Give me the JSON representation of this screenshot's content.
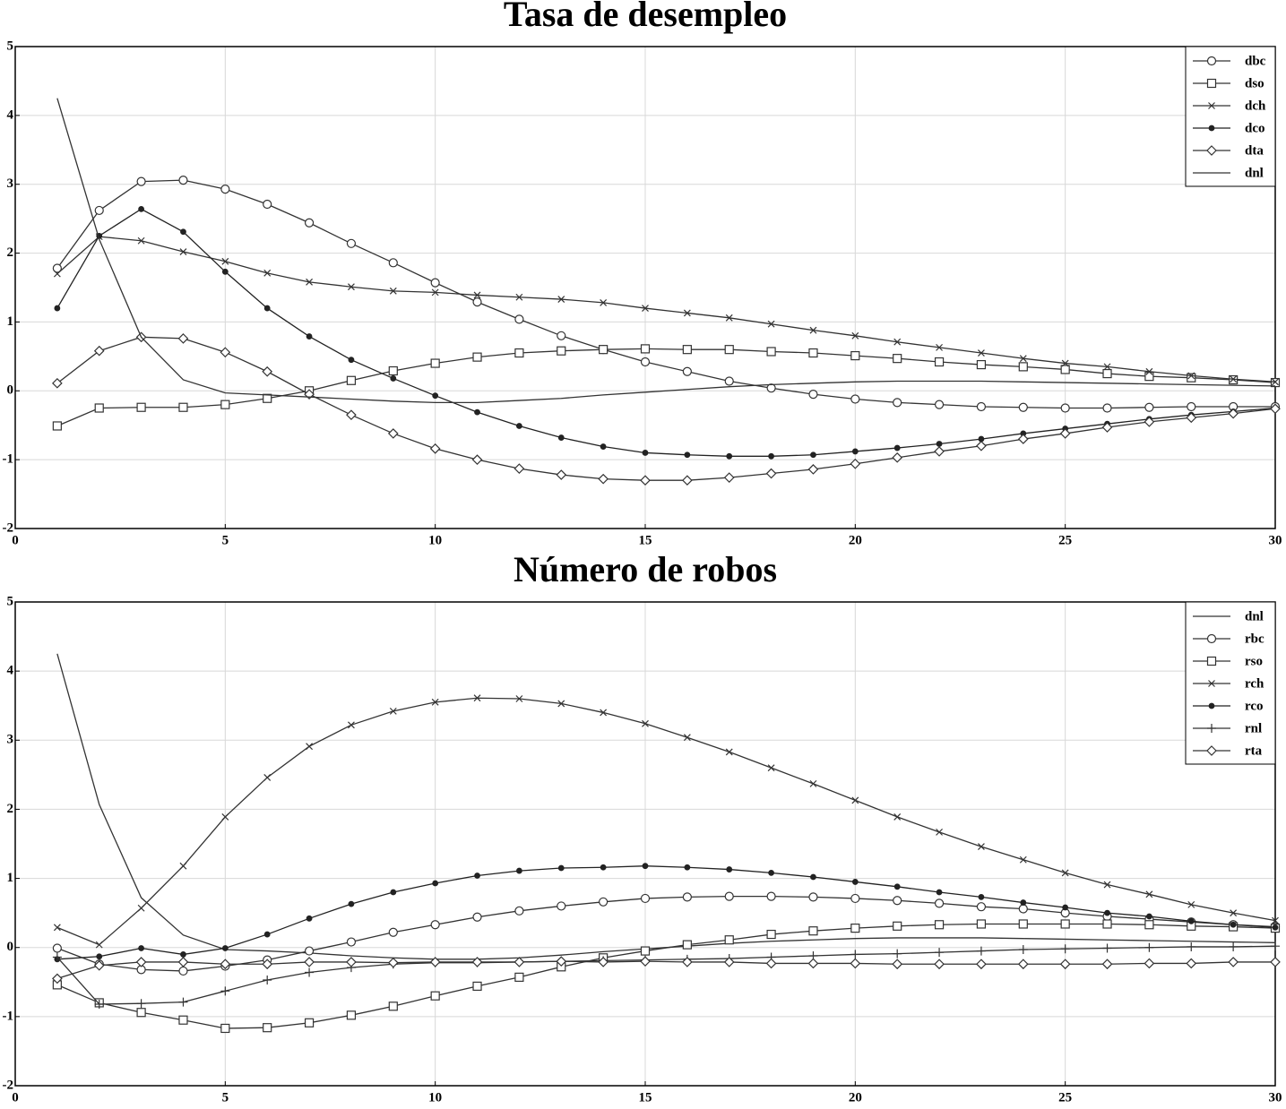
{
  "chart_data": [
    {
      "type": "line",
      "title": "Tasa de desempleo",
      "x": [
        1,
        2,
        3,
        4,
        5,
        6,
        7,
        8,
        9,
        10,
        11,
        12,
        13,
        14,
        15,
        16,
        17,
        18,
        19,
        20,
        21,
        22,
        23,
        24,
        25,
        26,
        27,
        28,
        29,
        30
      ],
      "xlim": [
        0,
        30
      ],
      "xticks": [
        0,
        5,
        10,
        15,
        20,
        25,
        30
      ],
      "ylim": [
        -2,
        5
      ],
      "yticks": [
        -2,
        -1,
        0,
        1,
        2,
        3,
        4,
        5
      ],
      "grid": true,
      "legend": "upper right",
      "series": [
        {
          "name": "dbc",
          "color": "#333333",
          "marker": "circle",
          "values": [
            1.78,
            2.62,
            3.04,
            3.06,
            2.93,
            2.71,
            2.44,
            2.14,
            1.86,
            1.57,
            1.29,
            1.04,
            0.8,
            0.6,
            0.42,
            0.28,
            0.14,
            0.04,
            -0.05,
            -0.12,
            -0.17,
            -0.2,
            -0.23,
            -0.24,
            -0.25,
            -0.25,
            -0.24,
            -0.23,
            -0.23,
            -0.23
          ]
        },
        {
          "name": "dso",
          "color": "#333333",
          "marker": "square",
          "values": [
            -0.51,
            -0.25,
            -0.24,
            -0.24,
            -0.2,
            -0.11,
            0.0,
            0.15,
            0.29,
            0.4,
            0.49,
            0.55,
            0.58,
            0.6,
            0.61,
            0.6,
            0.6,
            0.57,
            0.55,
            0.51,
            0.47,
            0.42,
            0.38,
            0.35,
            0.31,
            0.25,
            0.21,
            0.19,
            0.16,
            0.12
          ]
        },
        {
          "name": "dch",
          "color": "#333333",
          "marker": "x",
          "values": [
            1.7,
            2.24,
            2.18,
            2.02,
            1.88,
            1.71,
            1.58,
            1.51,
            1.45,
            1.43,
            1.39,
            1.36,
            1.33,
            1.28,
            1.2,
            1.13,
            1.06,
            0.97,
            0.88,
            0.8,
            0.71,
            0.63,
            0.55,
            0.47,
            0.4,
            0.35,
            0.28,
            0.22,
            0.17,
            0.13
          ]
        },
        {
          "name": "dco",
          "color": "#222222",
          "marker": "dot",
          "values": [
            1.2,
            2.25,
            2.64,
            2.31,
            1.73,
            1.2,
            0.79,
            0.45,
            0.18,
            -0.07,
            -0.31,
            -0.51,
            -0.68,
            -0.81,
            -0.9,
            -0.93,
            -0.95,
            -0.95,
            -0.93,
            -0.88,
            -0.83,
            -0.77,
            -0.7,
            -0.62,
            -0.55,
            -0.48,
            -0.41,
            -0.35,
            -0.3,
            -0.25
          ]
        },
        {
          "name": "dta",
          "color": "#333333",
          "marker": "diamond",
          "values": [
            0.11,
            0.58,
            0.78,
            0.76,
            0.56,
            0.28,
            -0.05,
            -0.35,
            -0.62,
            -0.84,
            -1.0,
            -1.13,
            -1.22,
            -1.28,
            -1.3,
            -1.3,
            -1.26,
            -1.2,
            -1.14,
            -1.06,
            -0.97,
            -0.88,
            -0.8,
            -0.7,
            -0.62,
            -0.53,
            -0.45,
            -0.39,
            -0.33,
            -0.26
          ]
        },
        {
          "name": "dnl",
          "color": "#333333",
          "marker": "none",
          "values": [
            4.25,
            2.2,
            0.78,
            0.16,
            -0.03,
            -0.06,
            -0.09,
            -0.12,
            -0.15,
            -0.17,
            -0.17,
            -0.14,
            -0.11,
            -0.06,
            -0.02,
            0.02,
            0.06,
            0.09,
            0.11,
            0.13,
            0.14,
            0.14,
            0.14,
            0.13,
            0.12,
            0.11,
            0.1,
            0.09,
            0.08,
            0.07
          ]
        }
      ]
    },
    {
      "type": "line",
      "title": "Número de robos",
      "x": [
        1,
        2,
        3,
        4,
        5,
        6,
        7,
        8,
        9,
        10,
        11,
        12,
        13,
        14,
        15,
        16,
        17,
        18,
        19,
        20,
        21,
        22,
        23,
        24,
        25,
        26,
        27,
        28,
        29,
        30
      ],
      "xlim": [
        0,
        30
      ],
      "xticks": [
        0,
        5,
        10,
        15,
        20,
        25,
        30
      ],
      "ylim": [
        -2,
        5
      ],
      "yticks": [
        -2,
        -1,
        0,
        1,
        2,
        3,
        4,
        5
      ],
      "grid": true,
      "legend": "upper right",
      "series": [
        {
          "name": "dnl",
          "color": "#333333",
          "marker": "none",
          "values": [
            4.25,
            2.07,
            0.72,
            0.18,
            -0.03,
            -0.05,
            -0.08,
            -0.12,
            -0.15,
            -0.17,
            -0.17,
            -0.15,
            -0.11,
            -0.06,
            -0.02,
            0.02,
            0.06,
            0.09,
            0.11,
            0.13,
            0.14,
            0.14,
            0.14,
            0.13,
            0.12,
            0.11,
            0.1,
            0.09,
            0.08,
            0.07
          ]
        },
        {
          "name": "rbc",
          "color": "#333333",
          "marker": "circle",
          "values": [
            -0.01,
            -0.24,
            -0.32,
            -0.34,
            -0.27,
            -0.18,
            -0.05,
            0.08,
            0.22,
            0.33,
            0.44,
            0.53,
            0.6,
            0.66,
            0.71,
            0.73,
            0.74,
            0.74,
            0.73,
            0.71,
            0.68,
            0.64,
            0.59,
            0.56,
            0.5,
            0.45,
            0.41,
            0.37,
            0.33,
            0.3
          ]
        },
        {
          "name": "rso",
          "color": "#333333",
          "marker": "square",
          "values": [
            -0.54,
            -0.8,
            -0.94,
            -1.05,
            -1.17,
            -1.16,
            -1.09,
            -0.98,
            -0.85,
            -0.7,
            -0.56,
            -0.43,
            -0.28,
            -0.15,
            -0.05,
            0.04,
            0.11,
            0.19,
            0.24,
            0.28,
            0.31,
            0.33,
            0.34,
            0.34,
            0.34,
            0.34,
            0.33,
            0.31,
            0.3,
            0.28
          ]
        },
        {
          "name": "rch",
          "color": "#333333",
          "marker": "x",
          "values": [
            0.29,
            0.04,
            0.57,
            1.18,
            1.89,
            2.46,
            2.91,
            3.22,
            3.42,
            3.55,
            3.61,
            3.6,
            3.53,
            3.4,
            3.24,
            3.04,
            2.83,
            2.6,
            2.37,
            2.13,
            1.89,
            1.67,
            1.46,
            1.27,
            1.08,
            0.91,
            0.77,
            0.62,
            0.5,
            0.39
          ]
        },
        {
          "name": "rco",
          "color": "#222222",
          "marker": "dot",
          "values": [
            -0.17,
            -0.13,
            -0.01,
            -0.1,
            -0.01,
            0.19,
            0.42,
            0.63,
            0.8,
            0.93,
            1.04,
            1.11,
            1.15,
            1.16,
            1.18,
            1.16,
            1.13,
            1.08,
            1.02,
            0.95,
            0.88,
            0.8,
            0.73,
            0.65,
            0.58,
            0.5,
            0.45,
            0.38,
            0.33,
            0.29
          ]
        },
        {
          "name": "rnl",
          "color": "#333333",
          "marker": "plus",
          "values": [
            -0.14,
            -0.82,
            -0.81,
            -0.79,
            -0.63,
            -0.47,
            -0.36,
            -0.29,
            -0.24,
            -0.22,
            -0.22,
            -0.21,
            -0.2,
            -0.19,
            -0.18,
            -0.17,
            -0.16,
            -0.14,
            -0.12,
            -0.1,
            -0.09,
            -0.07,
            -0.05,
            -0.03,
            -0.02,
            -0.01,
            0.0,
            0.01,
            0.01,
            0.02
          ]
        },
        {
          "name": "rta",
          "color": "#333333",
          "marker": "diamond",
          "values": [
            -0.45,
            -0.26,
            -0.21,
            -0.21,
            -0.24,
            -0.24,
            -0.21,
            -0.21,
            -0.22,
            -0.21,
            -0.21,
            -0.21,
            -0.2,
            -0.21,
            -0.2,
            -0.21,
            -0.21,
            -0.23,
            -0.23,
            -0.23,
            -0.24,
            -0.24,
            -0.24,
            -0.24,
            -0.24,
            -0.24,
            -0.23,
            -0.23,
            -0.21,
            -0.21
          ]
        }
      ]
    }
  ]
}
